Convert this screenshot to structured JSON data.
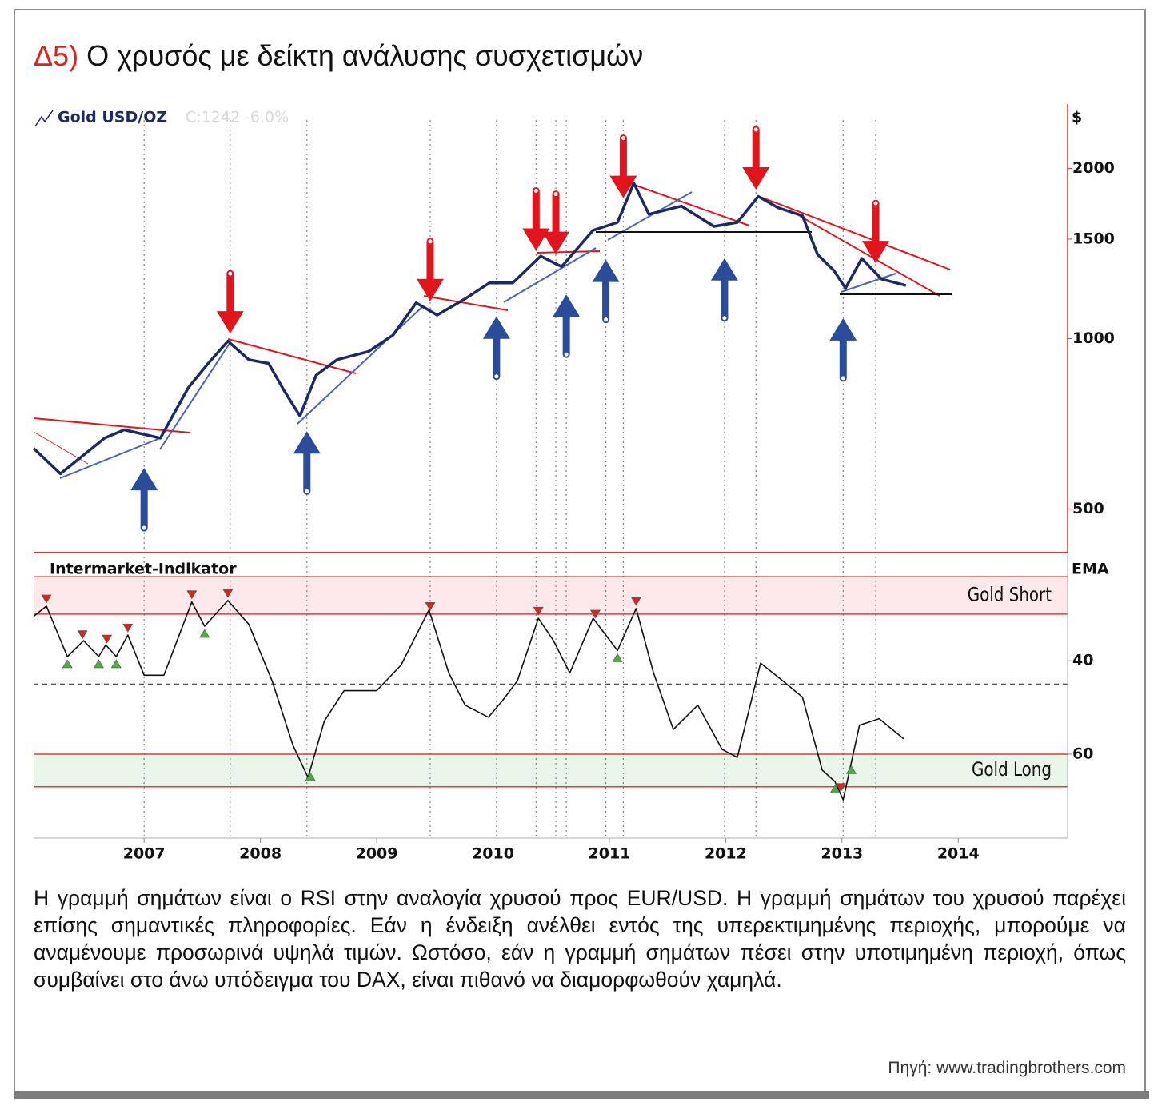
{
  "title_prefix": "Δ5)",
  "title": "Ο χρυσός με δείκτη ανάλυσης συσχετισμών",
  "body": "Η γραμμή σημάτων είναι ο RSI στην αναλογία χρυσού προς EUR/USD. Η γραμμή σημάτων του χρυσού παρέχει επίσης σημαντικές πληροφορίες. Εάν η ένδειξη ανέλθει εντός της υπερεκτιμημένης περιοχής, μπορούμε να αναμένουμε προσωρινά υψηλά τιμών. Ωστόσο, εάν η γραμμή σημάτων πέσει στην υποτιμημένη περιοχή, όπως συμβαίνει στο άνω υπόδειγμα του DAX, είναι πιθανό να διαμορφωθούν χαμηλά.",
  "source": "Πηγή: www.tradingbrothers.com",
  "chart_data": [
    {
      "type": "line",
      "legend_note": "C:1242 -6.0%",
      "y_unit_label": "$",
      "log_scale": true,
      "xlim": [
        2006.05,
        2014.94
      ],
      "ylim": [
        420,
        2600
      ],
      "yticks": [
        500,
        1000,
        1500,
        2000
      ],
      "x": [
        2006.05,
        2006.28,
        2006.66,
        2006.83,
        2007.14,
        2007.38,
        2007.55,
        2007.72,
        2007.9,
        2008.07,
        2008.21,
        2008.34,
        2008.48,
        2008.66,
        2008.93,
        2009.14,
        2009.34,
        2009.52,
        2009.76,
        2009.97,
        2010.17,
        2010.41,
        2010.59,
        2010.86,
        2011.07,
        2011.21,
        2011.34,
        2011.62,
        2011.9,
        2012.1,
        2012.28,
        2012.45,
        2012.66,
        2012.79,
        2012.93,
        2013.03,
        2013.17,
        2013.34,
        2013.55
      ],
      "series": [
        {
          "name": "Gold USD/OZ",
          "color": "#1b2a66",
          "values": [
            640,
            577,
            667,
            690,
            667,
            819,
            904,
            990,
            918,
            904,
            805,
            730,
            862,
            918,
            949,
            1014,
            1157,
            1101,
            1176,
            1255,
            1255,
            1400,
            1341,
            1555,
            1606,
            1884,
            1660,
            1716,
            1580,
            1606,
            1785,
            1705,
            1650,
            1409,
            1320,
            1228,
            1386,
            1275,
            1242
          ]
        }
      ],
      "sell_arrows": [
        2007.74,
        2009.46,
        2010.37,
        2010.54,
        2011.12,
        2012.26,
        2013.29
      ],
      "buy_arrows": [
        2007.0,
        2008.4,
        2010.03,
        2010.63,
        2010.97,
        2011.99,
        2013.01
      ],
      "sell_color": "#e2141c",
      "buy_color": "#2b4c9a"
    },
    {
      "type": "line",
      "title": "Intermarket-Indikator",
      "y_unit_label": "EMA",
      "y_inverted": true,
      "xlim": [
        2006.05,
        2014.94
      ],
      "xticks": [
        2007,
        2008,
        2009,
        2010,
        2011,
        2012,
        2013,
        2014
      ],
      "ylim": [
        17,
        78
      ],
      "yticks": [
        40,
        60
      ],
      "color": "#111111",
      "zones": [
        {
          "label": "Gold Short",
          "range": [
            22,
            30
          ],
          "color": "#fde9e9"
        },
        {
          "label": "Gold Long",
          "range": [
            60,
            67
          ],
          "color": "#eaf5ea"
        }
      ],
      "midline": 45,
      "x": [
        2006.05,
        2006.16,
        2006.34,
        2006.48,
        2006.61,
        2006.67,
        2006.76,
        2006.86,
        2007.0,
        2007.17,
        2007.41,
        2007.52,
        2007.72,
        2007.9,
        2008.1,
        2008.28,
        2008.41,
        2008.55,
        2008.72,
        2009.0,
        2009.21,
        2009.45,
        2009.62,
        2009.76,
        2009.96,
        2010.08,
        2010.21,
        2010.39,
        2010.52,
        2010.66,
        2010.86,
        2011.07,
        2011.23,
        2011.38,
        2011.55,
        2011.76,
        2011.97,
        2012.1,
        2012.3,
        2012.49,
        2012.66,
        2012.83,
        2012.94,
        2013.01,
        2013.15,
        2013.32,
        2013.53
      ],
      "values": [
        30.5,
        28.3,
        39.1,
        35.7,
        39.1,
        36.6,
        39.1,
        34.5,
        43.1,
        43.1,
        27.4,
        32.6,
        27.1,
        32.2,
        44.3,
        58.1,
        65.0,
        52.9,
        46.4,
        46.4,
        40.9,
        29.1,
        42.6,
        49.5,
        52.1,
        48.6,
        44.3,
        30.9,
        35.7,
        42.6,
        30.9,
        37.8,
        28.8,
        42.6,
        54.7,
        49.5,
        59.0,
        60.7,
        40.5,
        44.3,
        47.8,
        63.4,
        65.9,
        69.8,
        53.8,
        52.4,
        56.7
      ],
      "sell_signals": [
        2006.16,
        2006.47,
        2006.68,
        2006.86,
        2007.41,
        2007.72,
        2009.46,
        2010.39,
        2010.88,
        2011.23,
        2012.99
      ],
      "buy_signals": [
        2006.34,
        2006.61,
        2006.76,
        2007.52,
        2008.43,
        2011.07,
        2012.94,
        2013.08
      ],
      "sell_color": "#d9261c",
      "buy_color": "#4caf3c",
      "zone_line_color": "#e03a35"
    }
  ]
}
